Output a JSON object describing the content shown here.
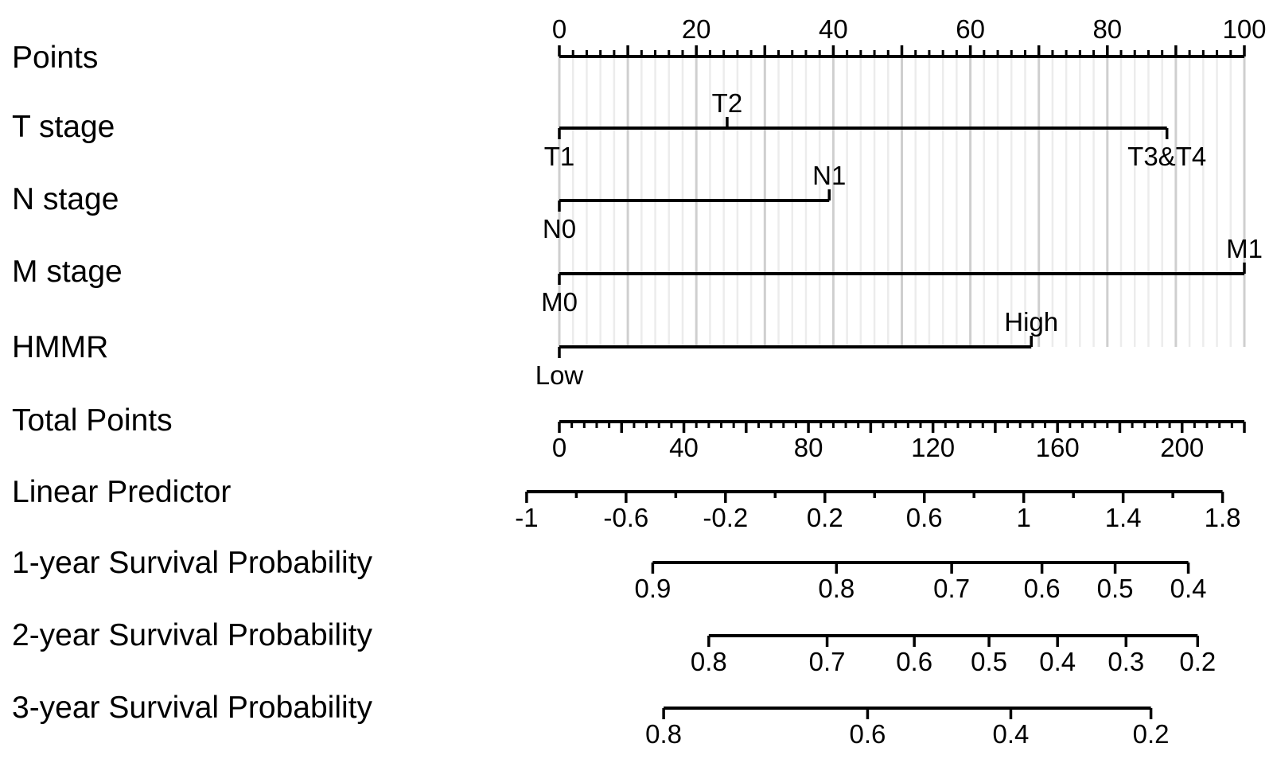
{
  "chart_data": {
    "type": "nomogram",
    "grid": true,
    "scales": [
      {
        "id": "points",
        "label": "Points",
        "kind": "axis",
        "tick_side": "top",
        "major_ticks": [
          0,
          20,
          40,
          60,
          80,
          100
        ],
        "minor_step": 2,
        "label_ticks": [
          "0",
          "20",
          "40",
          "60",
          "80",
          "100"
        ]
      },
      {
        "id": "t-stage",
        "label": "T stage",
        "kind": "variable",
        "levels": [
          {
            "label": "T1",
            "points": 0,
            "side": "below"
          },
          {
            "label": "T2",
            "points": 24.5,
            "side": "above"
          },
          {
            "label": "T3&T4",
            "points": 88.7,
            "side": "below"
          }
        ]
      },
      {
        "id": "n-stage",
        "label": "N stage",
        "kind": "variable",
        "levels": [
          {
            "label": "N0",
            "points": 0,
            "side": "below"
          },
          {
            "label": "N1",
            "points": 39.4,
            "side": "above"
          }
        ]
      },
      {
        "id": "m-stage",
        "label": "M stage",
        "kind": "variable",
        "levels": [
          {
            "label": "M0",
            "points": 0,
            "side": "below"
          },
          {
            "label": "M1",
            "points": 100,
            "side": "above"
          }
        ]
      },
      {
        "id": "hmmr",
        "label": "HMMR",
        "kind": "variable",
        "levels": [
          {
            "label": "Low",
            "points": 0,
            "side": "below"
          },
          {
            "label": "High",
            "points": 68.9,
            "side": "above"
          }
        ]
      },
      {
        "id": "total-points",
        "label": "Total Points",
        "kind": "axis",
        "tick_side": "bottom",
        "range": [
          0,
          220
        ],
        "major_ticks": [
          0,
          40,
          80,
          120,
          160,
          200
        ],
        "minor_step": 4,
        "label_ticks": [
          "0",
          "40",
          "80",
          "120",
          "160",
          "200"
        ]
      },
      {
        "id": "linear-predictor",
        "label": "Linear Predictor",
        "kind": "axis",
        "tick_side": "bottom",
        "range": [
          -1,
          1.8
        ],
        "total_points_range": [
          -10.5,
          213
        ],
        "major_ticks": [
          -1,
          -0.6,
          -0.2,
          0.2,
          0.6,
          1,
          1.4,
          1.8
        ],
        "minor_step": 0.2,
        "label_ticks": [
          "-1",
          "-0.6",
          "-0.2",
          "0.2",
          "0.6",
          "1",
          "1.4",
          "1.8"
        ]
      },
      {
        "id": "surv-1y",
        "label": "1-year Survival Probability",
        "kind": "probability",
        "ticks": [
          {
            "label": "0.9",
            "total_points": 30
          },
          {
            "label": "0.8",
            "total_points": 89
          },
          {
            "label": "0.7",
            "total_points": 126
          },
          {
            "label": "0.6",
            "total_points": 155
          },
          {
            "label": "0.5",
            "total_points": 178.5
          },
          {
            "label": "0.4",
            "total_points": 202
          }
        ]
      },
      {
        "id": "surv-2y",
        "label": "2-year Survival Probability",
        "kind": "probability",
        "ticks": [
          {
            "label": "0.8",
            "total_points": 48
          },
          {
            "label": "0.7",
            "total_points": 86
          },
          {
            "label": "0.6",
            "total_points": 114
          },
          {
            "label": "0.5",
            "total_points": 138
          },
          {
            "label": "0.4",
            "total_points": 160
          },
          {
            "label": "0.3",
            "total_points": 182
          },
          {
            "label": "0.2",
            "total_points": 205
          }
        ]
      },
      {
        "id": "surv-3y",
        "label": "3-year Survival Probability",
        "kind": "probability",
        "ticks": [
          {
            "label": "0.8",
            "total_points": 33.5
          },
          {
            "label": "0.6",
            "total_points": 99
          },
          {
            "label": "0.4",
            "total_points": 145
          },
          {
            "label": "0.2",
            "total_points": 190
          }
        ]
      }
    ]
  }
}
